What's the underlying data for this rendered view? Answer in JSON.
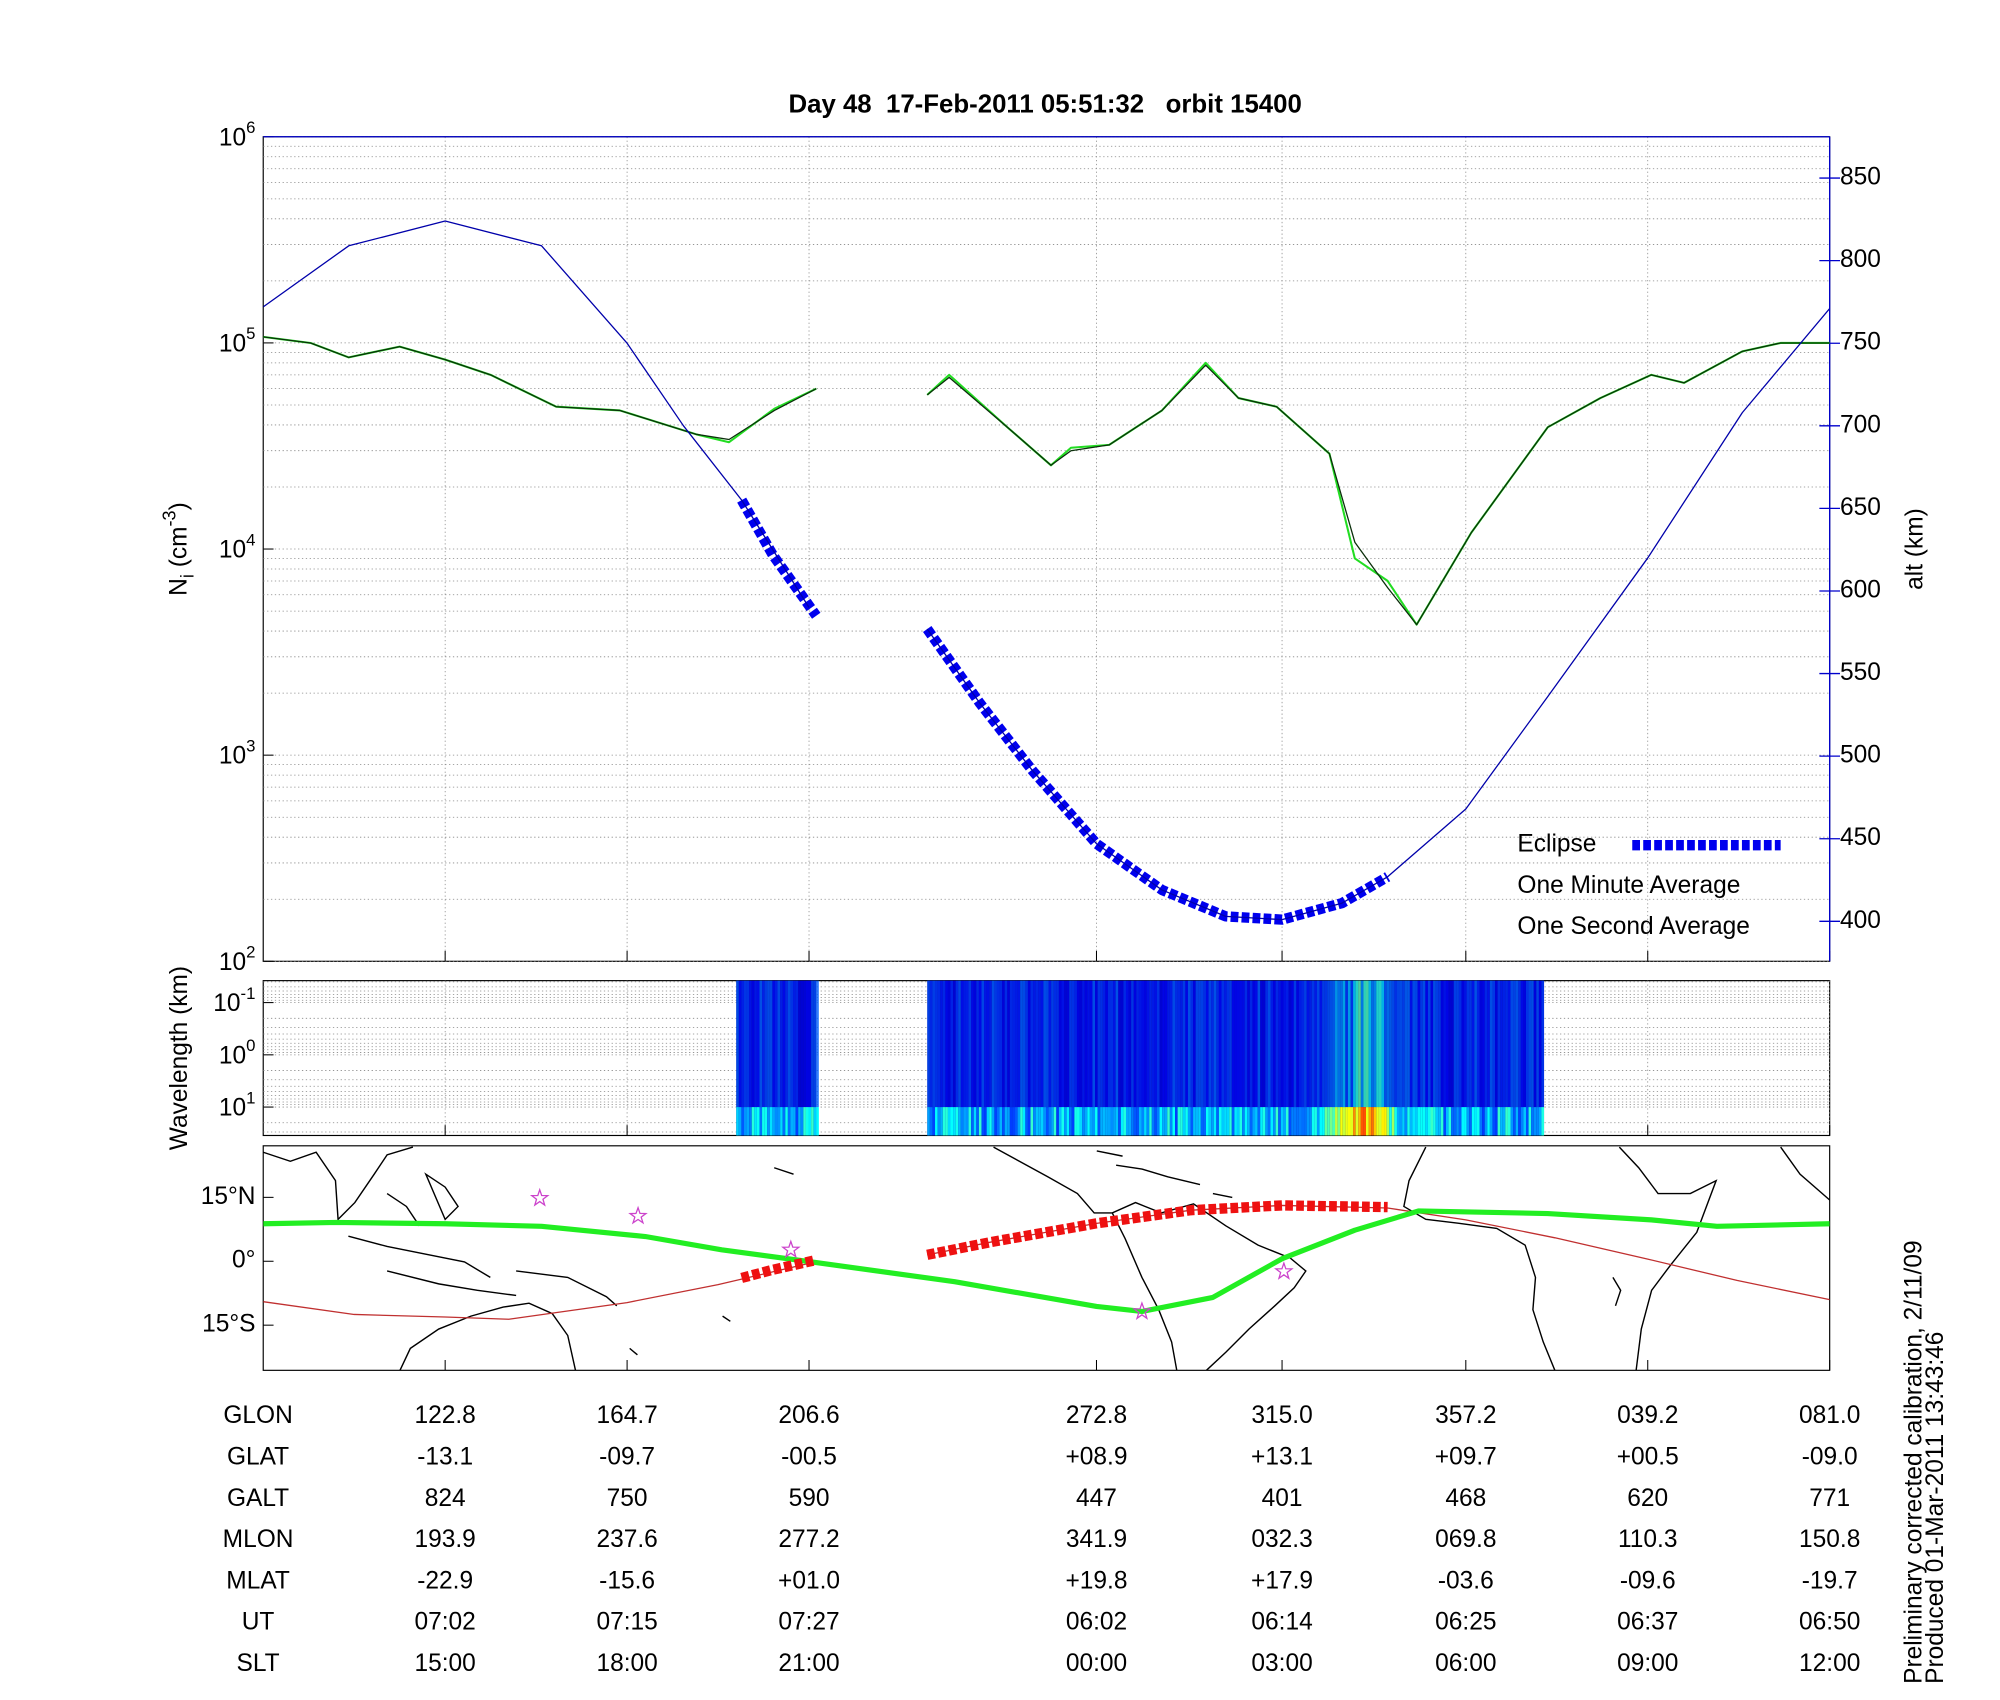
{
  "chart_data": [
    {
      "type": "line",
      "title": "Day 48  17-Feb-2011 05:51:32   orbit 15400",
      "ylabel": {
        "main": "N",
        "sub": "i",
        "unit": " (cm",
        "sup": "-3",
        "close": ")"
      },
      "y2label": "alt (km)",
      "yscale": "log",
      "ylim": [
        100,
        1000000
      ],
      "yticks": [
        {
          "value": 100,
          "label": "10",
          "exponent": "2"
        },
        {
          "value": 1000,
          "label": "10",
          "exponent": "3"
        },
        {
          "value": 10000,
          "label": "10",
          "exponent": "4"
        },
        {
          "value": 100000,
          "label": "10",
          "exponent": "5"
        },
        {
          "value": 1000000,
          "label": "10",
          "exponent": "6"
        }
      ],
      "y2lim": [
        375.8,
        875
      ],
      "y2ticks": [
        400,
        450,
        500,
        550,
        600,
        650,
        700,
        750,
        800,
        850
      ],
      "y2color": "#0000cc",
      "xlim": [
        0,
        86.1
      ],
      "xticks": [
        10,
        20,
        30,
        45.8,
        56,
        66.1,
        76.1,
        86.1
      ],
      "grid": true,
      "legend": "lower right",
      "series": [
        {
          "color": "#0000aa",
          "axis": "y2",
          "style": "thin",
          "x": [
            0,
            4.7,
            10,
            15.3,
            20,
            23.1,
            26.3,
            30,
            33,
            36.5,
            39.4,
            42.3,
            45.8,
            49.4,
            52.9,
            56,
            59.3,
            61.8,
            66.1,
            70.6,
            76.1,
            81.3,
            86.1
          ],
          "values": [
            772,
            809,
            824,
            809,
            750,
            700,
            655,
            590,
            null,
            577,
            532,
            491,
            447,
            419,
            403,
            401,
            411,
            427,
            468,
            536,
            620,
            708,
            771
          ]
        },
        {
          "name": "Eclipse",
          "color": "#0000ee",
          "axis": "y2",
          "style": "dashed",
          "x": [
            26.3,
            28,
            30.4,
            33,
            36.5,
            39.4,
            42.3,
            45.8,
            49.4,
            52.9,
            56,
            59.3,
            61.8
          ],
          "values": [
            655,
            622,
            585,
            null,
            577,
            532,
            491,
            447,
            419,
            403,
            401,
            411,
            427
          ]
        },
        {
          "name": "One Minute Average",
          "color": "#0b2f0b",
          "style": "thin",
          "x": [
            0,
            2.6,
            4.7,
            7.5,
            10,
            12.5,
            16.1,
            19.6,
            23.8,
            25.6,
            28.1,
            30.4,
            33,
            36.5,
            37.7,
            40.9,
            43.3,
            44.4,
            46.5,
            49.4,
            51.8,
            53.6,
            55.7,
            58.6,
            60,
            61.8,
            63.4,
            66.4,
            70.6,
            73.5,
            76.3,
            78.1,
            81.3,
            83.4,
            86.1
          ],
          "values": [
            107000,
            100000,
            85000,
            96000,
            83000,
            70000,
            49000,
            47000,
            36000,
            34000,
            47000,
            60000,
            null,
            56000,
            68000,
            39000,
            25500,
            30000,
            32000,
            47000,
            78000,
            54000,
            49000,
            29000,
            10800,
            6500,
            4300,
            12000,
            39000,
            54000,
            70000,
            64000,
            91000,
            100000,
            100000
          ]
        },
        {
          "name": "One Second Average",
          "color": "#22dd22",
          "style": "medium",
          "x": [
            0,
            2.6,
            4.7,
            7.5,
            10,
            12.5,
            16.1,
            19.6,
            23.8,
            25.6,
            28.1,
            30.4,
            33,
            36.5,
            37.7,
            40.9,
            43.3,
            44.4,
            46.5,
            49.4,
            51.8,
            53.6,
            55.7,
            58.6,
            60,
            61.8,
            63.4,
            66.4,
            70.6,
            73.5,
            76.3,
            78.1,
            81.3,
            83.4,
            86.1
          ],
          "values": [
            107000,
            100000,
            85000,
            96000,
            83000,
            70000,
            49000,
            47000,
            36000,
            33000,
            48000,
            60000,
            null,
            56000,
            70000,
            39000,
            25500,
            31000,
            32000,
            47000,
            80000,
            54000,
            49000,
            29000,
            9000,
            7000,
            4300,
            12000,
            39000,
            54000,
            70000,
            64000,
            91000,
            100000,
            100000
          ]
        }
      ]
    },
    {
      "type": "spectrogram",
      "ylabel": "Wavelength (km)",
      "yscale": "log",
      "yreverse": true,
      "ylim": [
        0.038,
        35
      ],
      "yticks": [
        {
          "value": 0.1,
          "label": "10",
          "exponent": "-1"
        },
        {
          "value": 1,
          "label": "10",
          "exponent": "0"
        },
        {
          "value": 10,
          "label": "10",
          "exponent": "1"
        }
      ],
      "xlim": [
        0,
        86.1
      ],
      "xticks": [
        10,
        20,
        30,
        45.8,
        56,
        66.1,
        76.1,
        86.1
      ],
      "grid": true,
      "coverage": [
        [
          26.0,
          30.4
        ],
        [
          36.5,
          70.4
        ]
      ]
    },
    {
      "type": "map",
      "ylim": [
        -25.6,
        27.1
      ],
      "yticks": [
        {
          "value": 15,
          "label": "15°N"
        },
        {
          "value": 0,
          "label": "0°"
        },
        {
          "value": -15,
          "label": "15°S"
        }
      ],
      "xlim": [
        0,
        86.1
      ],
      "xticks": [
        10,
        20,
        30,
        45.8,
        56,
        66.1,
        76.1,
        86.1
      ],
      "series": [
        {
          "color": "#c03030",
          "style": "thin",
          "x": [
            0,
            5,
            10,
            13.5,
            20,
            25,
            30,
            33,
            36.5,
            40,
            45.8,
            51,
            56,
            61.8,
            66.1,
            71,
            76.1,
            81,
            86.1
          ],
          "values": [
            -9.5,
            -12.5,
            -13.1,
            -13.6,
            -9.7,
            -5.5,
            -0.5,
            null,
            1.5,
            4.5,
            8.9,
            12,
            13.1,
            12.5,
            9.7,
            5.5,
            0.5,
            -4.5,
            -9.0
          ]
        },
        {
          "color": "#22ee22",
          "style": "thick",
          "x": [
            0,
            4,
            10,
            15.3,
            21,
            25.2,
            30.4,
            38,
            45.8,
            48.3,
            52.2,
            56,
            60,
            63.5,
            70.6,
            76.3,
            79.9,
            86.1
          ],
          "values": [
            8.8,
            9.1,
            8.8,
            8.2,
            5.8,
            2.7,
            -0.3,
            -4.8,
            -10.6,
            -11.8,
            -8.5,
            0.6,
            7.3,
            11.8,
            11.2,
            9.7,
            8.2,
            8.8
          ]
        },
        {
          "color": "#ee1111",
          "style": "dashed",
          "x": [
            26.3,
            28,
            30.4,
            33,
            36.5,
            40,
            45.8,
            51,
            56,
            61.8
          ],
          "values": [
            -3.9,
            -2,
            0.3,
            null,
            1.5,
            4.5,
            8.9,
            12,
            13.1,
            12.7
          ]
        }
      ],
      "markers": {
        "symbol": "star",
        "color": "#cc44cc",
        "x": [
          15.2,
          20.6,
          29,
          48.3,
          56.1
        ],
        "values": [
          14.8,
          10.6,
          2.7,
          -11.8,
          -2.4
        ]
      }
    }
  ],
  "table": {
    "rows": [
      {
        "label": "GLON",
        "cells": [
          "122.8",
          "164.7",
          "206.6",
          "272.8",
          "315.0",
          "357.2",
          "039.2",
          "081.0"
        ]
      },
      {
        "label": "GLAT",
        "cells": [
          "-13.1",
          "-09.7",
          "-00.5",
          "+08.9",
          "+13.1",
          "+09.7",
          "+00.5",
          "-09.0"
        ]
      },
      {
        "label": "GALT",
        "cells": [
          "824",
          "750",
          "590",
          "447",
          "401",
          "468",
          "620",
          "771"
        ]
      },
      {
        "label": "MLON",
        "cells": [
          "193.9",
          "237.6",
          "277.2",
          "341.9",
          "032.3",
          "069.8",
          "110.3",
          "150.8"
        ]
      },
      {
        "label": "MLAT",
        "cells": [
          "-22.9",
          "-15.6",
          "+01.0",
          "+19.8",
          "+17.9",
          "-03.6",
          "-09.6",
          "-19.7"
        ]
      },
      {
        "label": "UT",
        "cells": [
          "07:02",
          "07:15",
          "07:27",
          "06:02",
          "06:14",
          "06:25",
          "06:37",
          "06:50"
        ]
      },
      {
        "label": "SLT",
        "cells": [
          "15:00",
          "18:00",
          "21:00",
          "00:00",
          "03:00",
          "06:00",
          "09:00",
          "12:00"
        ]
      }
    ]
  },
  "notes": [
    "Preliminary corrected calibration, 2/11/09",
    "Produced 01-Mar-2011 13:43:46"
  ]
}
